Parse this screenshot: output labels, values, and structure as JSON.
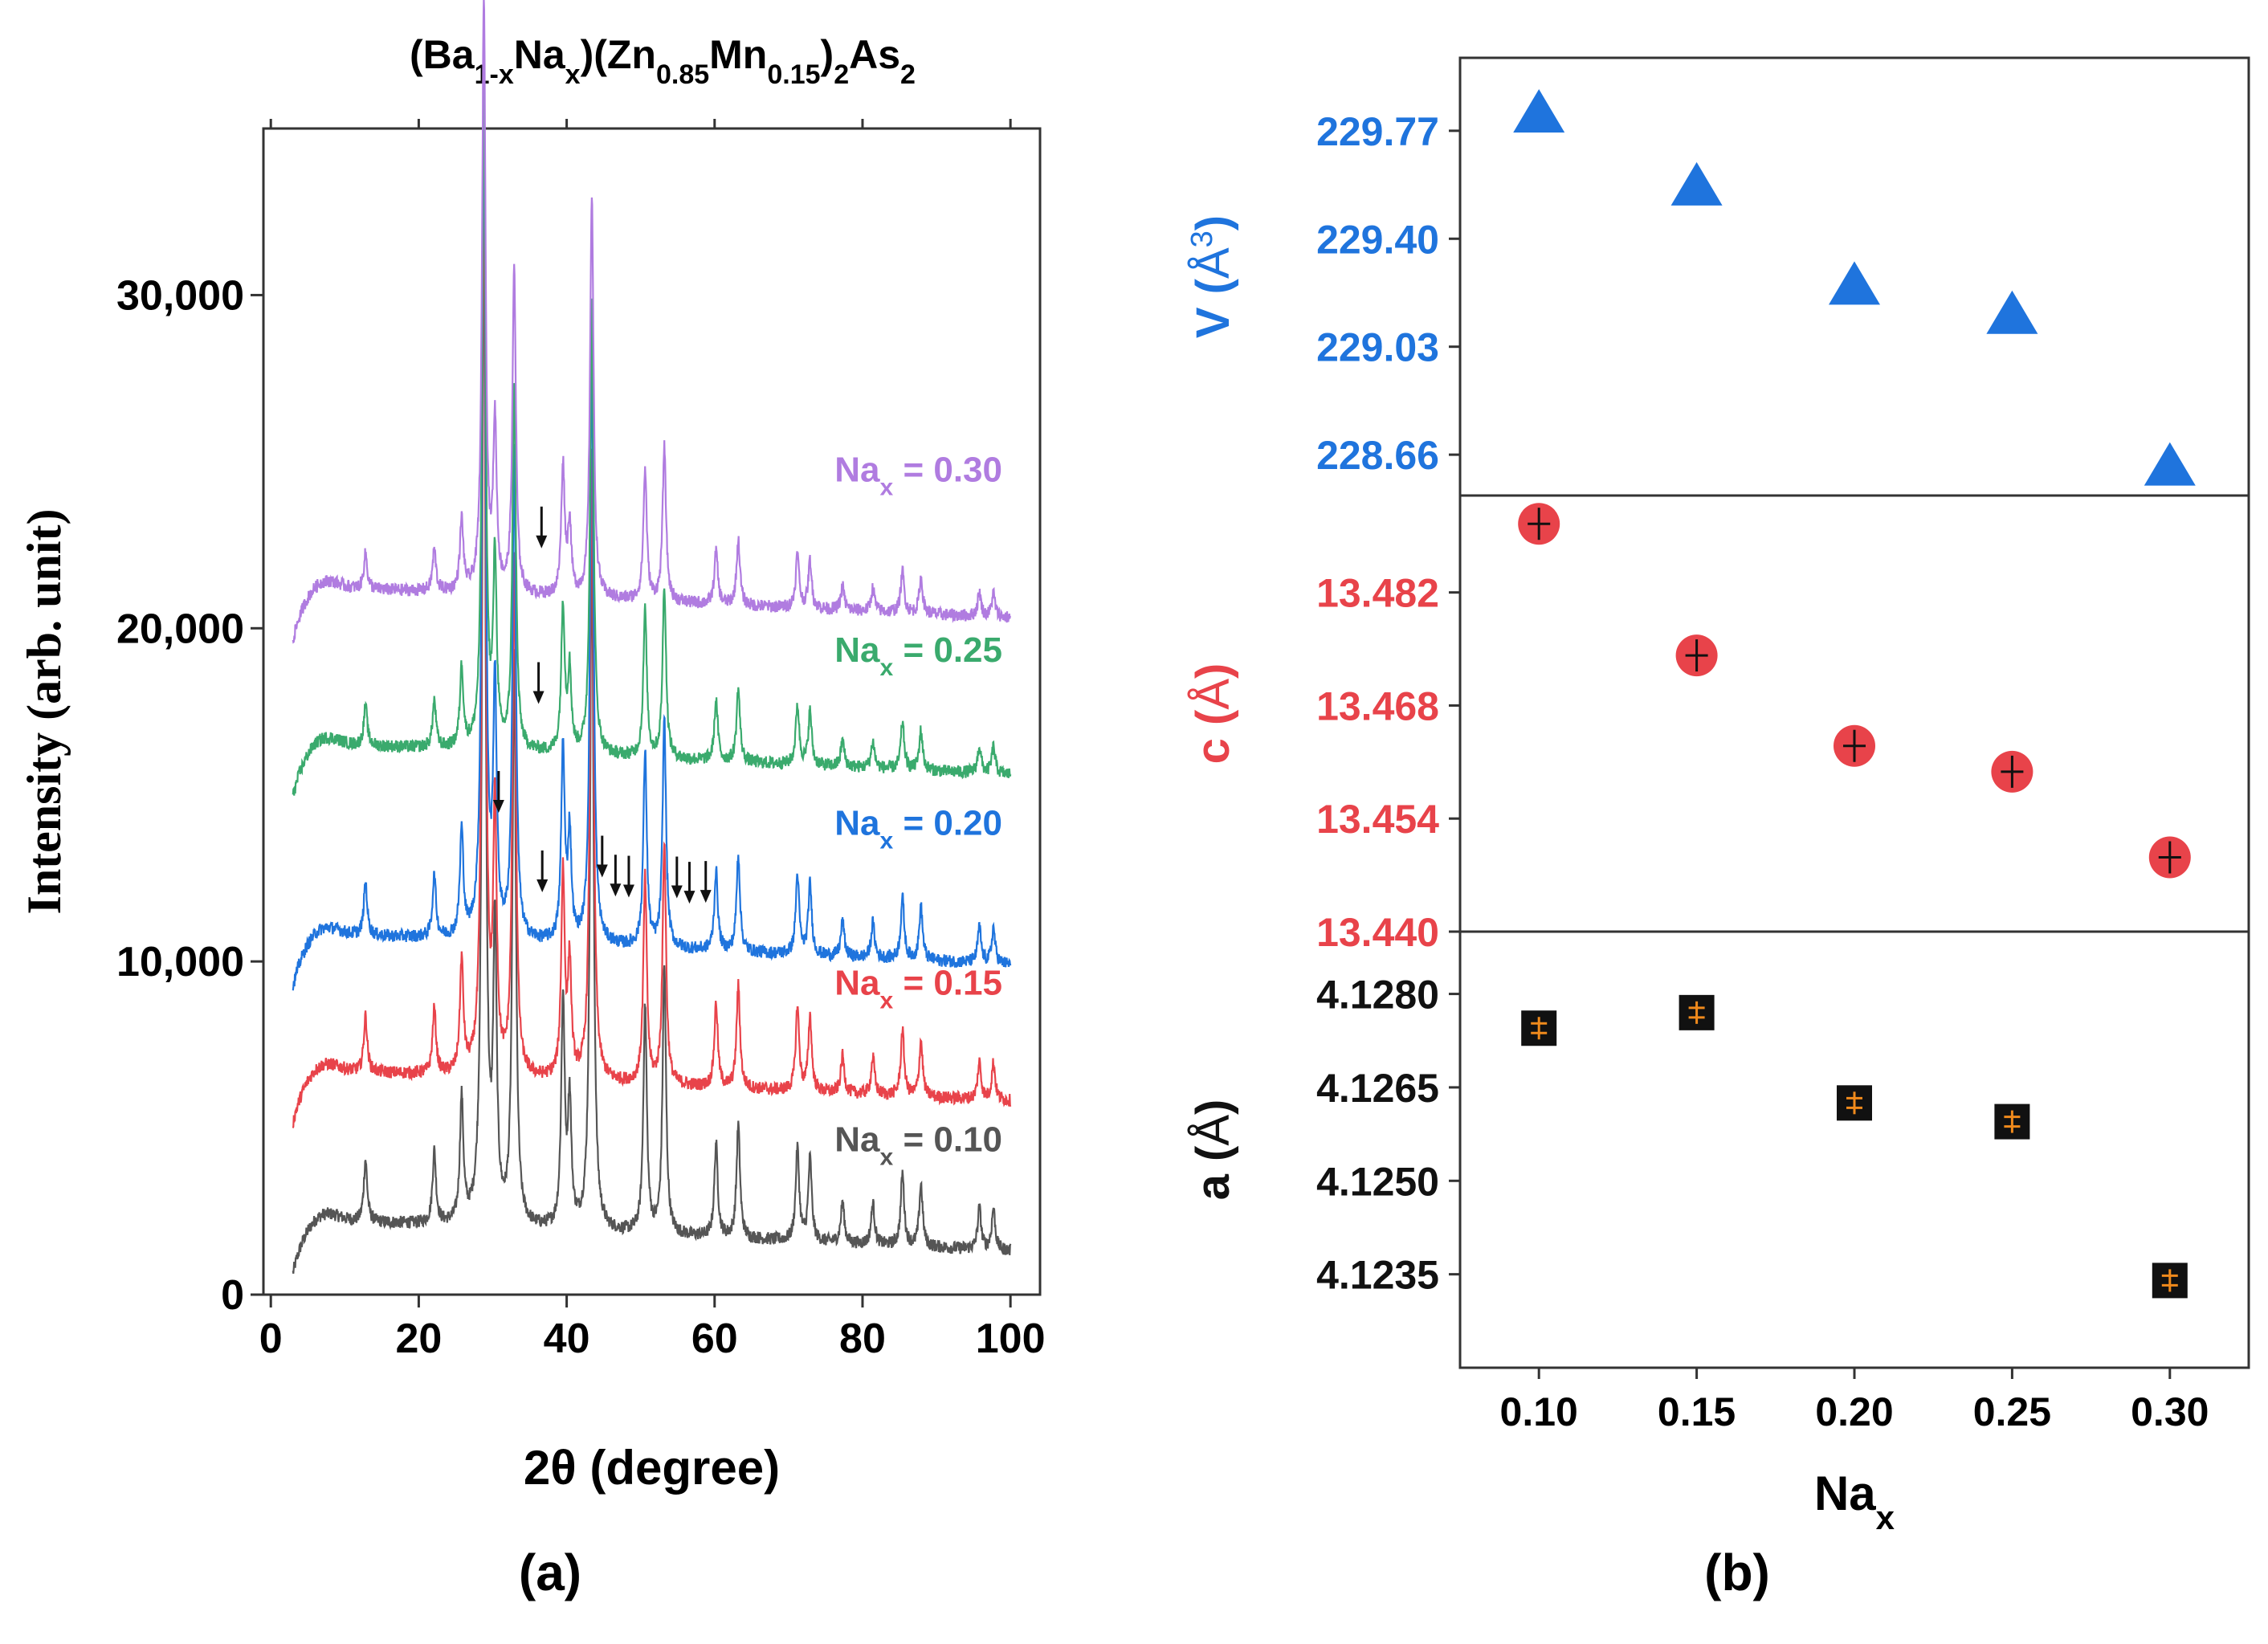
{
  "figure": {
    "title_parts": [
      {
        "t": "(Ba",
        "s": "n"
      },
      {
        "t": "1-x",
        "s": "b"
      },
      {
        "t": "Na",
        "s": "n"
      },
      {
        "t": "x",
        "s": "b"
      },
      {
        "t": ")(Zn",
        "s": "n"
      },
      {
        "t": "0.85",
        "s": "b"
      },
      {
        "t": "Mn",
        "s": "n"
      },
      {
        "t": "0.15",
        "s": "b"
      },
      {
        "t": ")",
        "s": "n"
      },
      {
        "t": "2",
        "s": "b"
      },
      {
        "t": "As",
        "s": "n"
      },
      {
        "t": "2",
        "s": "b"
      }
    ],
    "panel_a_label": "(a)",
    "panel_b_label": "(b)"
  },
  "chart_data": [
    {
      "id": "a",
      "type": "line",
      "title": "(Ba1-xNax)(Zn0.85Mn0.15)2As2",
      "xlabel": "2θ (degree)",
      "ylabel": "Intensity (arb. unit)",
      "xlim": [
        -1,
        104
      ],
      "ylim": [
        0,
        35000
      ],
      "xticks": [
        0,
        20,
        40,
        60,
        80,
        100
      ],
      "xtick_labels": [
        "0",
        "20",
        "40",
        "60",
        "80",
        "100"
      ],
      "yticks": [
        0,
        10000,
        20000,
        30000
      ],
      "ytick_labels": [
        "0",
        "10,000",
        "20,000",
        "30,000"
      ],
      "x_start": 3,
      "x_end": 100,
      "peaks": [
        {
          "x": 12.8,
          "h": 0.06
        },
        {
          "x": 22.1,
          "h": 0.07
        },
        {
          "x": 25.8,
          "h": 0.12
        },
        {
          "x": 28.8,
          "h": 1.0
        },
        {
          "x": 30.3,
          "h": 0.28
        },
        {
          "x": 32.9,
          "h": 0.55
        },
        {
          "x": 39.5,
          "h": 0.22
        },
        {
          "x": 40.4,
          "h": 0.12
        },
        {
          "x": 43.4,
          "h": 0.68
        },
        {
          "x": 50.6,
          "h": 0.22
        },
        {
          "x": 53.2,
          "h": 0.26
        },
        {
          "x": 60.2,
          "h": 0.09
        },
        {
          "x": 63.2,
          "h": 0.11
        },
        {
          "x": 71.2,
          "h": 0.09
        },
        {
          "x": 72.9,
          "h": 0.08
        },
        {
          "x": 77.3,
          "h": 0.04
        },
        {
          "x": 81.4,
          "h": 0.04
        },
        {
          "x": 85.4,
          "h": 0.07
        },
        {
          "x": 87.9,
          "h": 0.06
        },
        {
          "x": 95.8,
          "h": 0.04
        },
        {
          "x": 97.7,
          "h": 0.04
        }
      ],
      "series": [
        {
          "name": "Nax = 0.10",
          "label_main": "Na",
          "label_sub": "x",
          "label_rest": " = 0.10",
          "color": "#555555",
          "offset": 0,
          "scale": 31000,
          "label_y": 4300,
          "arrows": []
        },
        {
          "name": "Nax = 0.15",
          "label_main": "Na",
          "label_sub": "x",
          "label_rest": " = 0.15",
          "color": "#e8434a",
          "offset": 4500,
          "scale": 28000,
          "label_y": 9000,
          "arrows": []
        },
        {
          "name": "Nax = 0.20",
          "label_main": "Na",
          "label_sub": "x",
          "label_rest": " = 0.20",
          "color": "#1f74dd",
          "offset": 8600,
          "scale": 26500,
          "label_y": 13800,
          "arrows": [
            30.8,
            36.7,
            44.8,
            46.6,
            48.4,
            54.9,
            56.6,
            58.8
          ]
        },
        {
          "name": "Nax = 0.25",
          "label_main": "Na",
          "label_sub": "x",
          "label_rest": " = 0.25",
          "color": "#3aaa6d",
          "offset": 14300,
          "scale": 20000,
          "label_y": 19000,
          "arrows": [
            36.2
          ]
        },
        {
          "name": "Nax = 0.30",
          "label_main": "Na",
          "label_sub": "x",
          "label_rest": " = 0.30",
          "color": "#b07ce0",
          "offset": 19000,
          "scale": 17800,
          "label_y": 24400,
          "arrows": [
            36.6
          ]
        }
      ]
    },
    {
      "id": "b",
      "type": "scatter",
      "xlabel_main": "Na",
      "xlabel_sub": "x",
      "x": [
        0.1,
        0.15,
        0.2,
        0.25,
        0.3
      ],
      "xlim": [
        0.075,
        0.325
      ],
      "xticks": [
        0.1,
        0.15,
        0.2,
        0.25,
        0.3
      ],
      "xtick_labels": [
        "0.10",
        "0.15",
        "0.20",
        "0.25",
        "0.30"
      ],
      "subplots": [
        {
          "name": "V",
          "ylabel_main": "V (",
          "ylabel_unit": "Å",
          "ylabel_sup": "3",
          "ylabel_end": ")",
          "color": "#1f74dd",
          "marker": "triangle",
          "ylim": [
            228.52,
            230.02
          ],
          "yticks": [
            228.66,
            229.03,
            229.4,
            229.77
          ],
          "ytick_labels": [
            "228.66",
            "229.03",
            "229.40",
            "229.77"
          ],
          "values": [
            229.83,
            229.58,
            229.24,
            229.14,
            228.62
          ]
        },
        {
          "name": "c",
          "ylabel_main": "c (",
          "ylabel_unit": "Å",
          "ylabel_sup": "",
          "ylabel_end": ")",
          "color": "#e8434a",
          "marker": "circle",
          "ylim": [
            13.44,
            13.494
          ],
          "yticks": [
            13.44,
            13.454,
            13.468,
            13.482
          ],
          "ytick_labels": [
            "13.440",
            "13.454",
            "13.468",
            "13.482"
          ],
          "values": [
            13.4905,
            13.4742,
            13.463,
            13.4598,
            13.4492
          ]
        },
        {
          "name": "a",
          "ylabel_main": "a (",
          "ylabel_unit": "Å",
          "ylabel_sup": "",
          "ylabel_end": ")",
          "color": "#111111",
          "errcolor": "#f08a1c",
          "marker": "square",
          "ylim": [
            4.122,
            4.129
          ],
          "yticks": [
            4.1235,
            4.125,
            4.1265,
            4.128
          ],
          "ytick_labels": [
            "4.1235",
            "4.1250",
            "4.1265",
            "4.1280"
          ],
          "values": [
            4.12745,
            4.1277,
            4.12625,
            4.12595,
            4.1234
          ]
        }
      ]
    }
  ]
}
